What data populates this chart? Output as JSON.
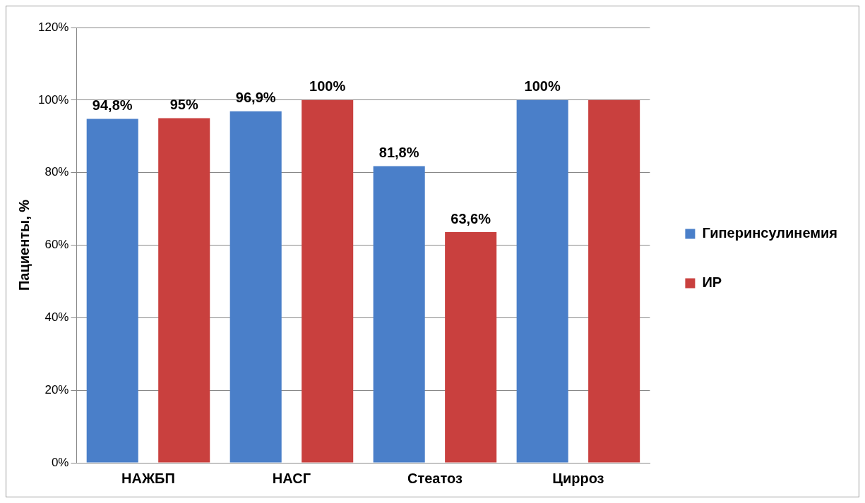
{
  "chart_data": {
    "type": "bar",
    "ylabel": "Пациенты, %",
    "categories": [
      "НАЖБП",
      "НАСГ",
      "Стеатоз",
      "Цирроз"
    ],
    "series": [
      {
        "name": "Гиперинсулинемия",
        "color": "#4a7fc9",
        "values": [
          94.8,
          96.9,
          81.8,
          100
        ],
        "value_labels": [
          "94,8%",
          "96,9%",
          "81,8%",
          "100%"
        ]
      },
      {
        "name": "ИР",
        "color": "#c9403e",
        "values": [
          95,
          100,
          63.6,
          100
        ],
        "value_labels": [
          "95%",
          "100%",
          "63,6%",
          null
        ]
      }
    ],
    "ylim": [
      0,
      120
    ],
    "yticks": [
      {
        "value": 0,
        "label": "0%"
      },
      {
        "value": 20,
        "label": "20%"
      },
      {
        "value": 40,
        "label": "40%"
      },
      {
        "value": 60,
        "label": "60%"
      },
      {
        "value": 80,
        "label": "80%"
      },
      {
        "value": 100,
        "label": "100%"
      },
      {
        "value": 120,
        "label": "120%"
      }
    ],
    "grid": "y",
    "legend": "right"
  }
}
